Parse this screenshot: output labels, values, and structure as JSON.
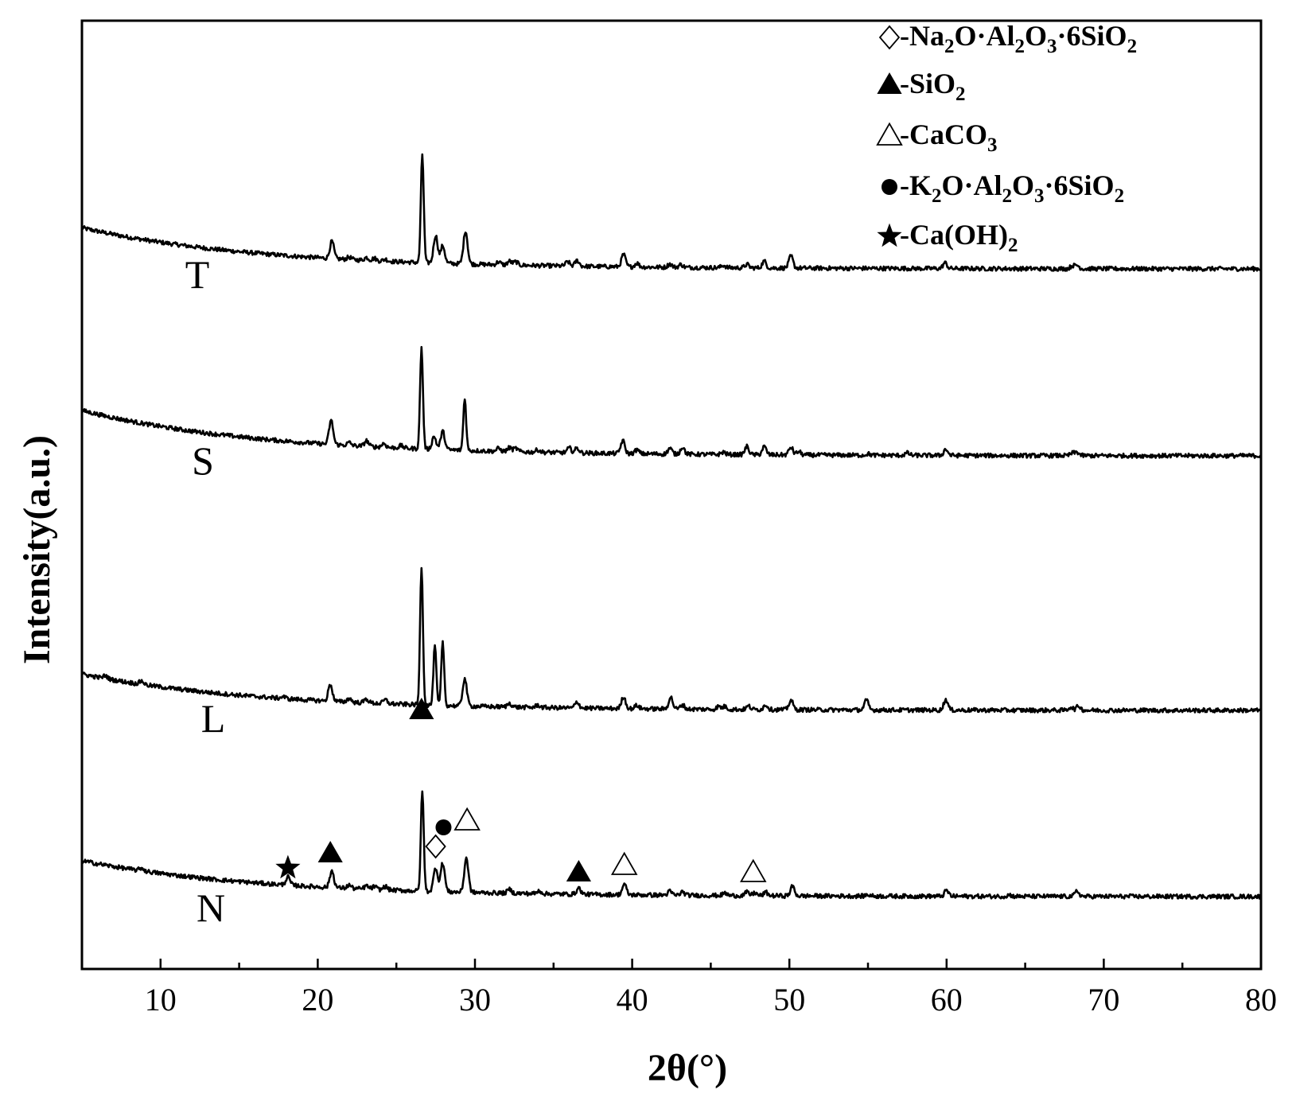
{
  "chart_data": {
    "type": "line",
    "xlabel": "2θ(°)",
    "ylabel": "Intensity(a.u.)",
    "xlim": [
      5,
      80
    ],
    "x_ticks": [
      10,
      20,
      30,
      40,
      50,
      60,
      70,
      80
    ],
    "y_ticks": [],
    "grid": false,
    "legend_position": "top-right",
    "legend": [
      {
        "symbol": "open-diamond",
        "text": [
          "-Na",
          "2",
          "O·Al",
          "2",
          "O",
          "3",
          "·6SiO",
          "2"
        ]
      },
      {
        "symbol": "filled-triangle",
        "text": [
          "-SiO",
          "2"
        ]
      },
      {
        "symbol": "open-triangle",
        "text": [
          "-CaCO",
          "3"
        ]
      },
      {
        "symbol": "filled-circle",
        "text": [
          "-K",
          "2",
          "O·Al",
          "2",
          "O",
          "3",
          "·6SiO",
          "2"
        ]
      },
      {
        "symbol": "filled-star",
        "text": [
          "-Ca(OH)",
          "2"
        ]
      }
    ],
    "series": [
      {
        "name": "T",
        "baseline_start": 0.86,
        "baseline_end": 0.0,
        "peaks": [
          [
            20.9,
            0.36
          ],
          [
            22.0,
            0.05
          ],
          [
            23.1,
            0.06
          ],
          [
            23.6,
            0.05
          ],
          [
            24.3,
            0.04
          ],
          [
            26.65,
            2.27
          ],
          [
            27.5,
            0.58
          ],
          [
            27.95,
            0.37
          ],
          [
            29.4,
            0.7
          ],
          [
            31.5,
            0.06
          ],
          [
            32.2,
            0.08
          ],
          [
            32.6,
            0.07
          ],
          [
            35.9,
            0.09
          ],
          [
            36.5,
            0.12
          ],
          [
            39.45,
            0.26
          ],
          [
            40.3,
            0.08
          ],
          [
            42.4,
            0.07
          ],
          [
            43.1,
            0.06
          ],
          [
            45.8,
            0.05
          ],
          [
            47.3,
            0.07
          ],
          [
            48.4,
            0.14
          ],
          [
            50.1,
            0.25
          ],
          [
            59.9,
            0.12
          ],
          [
            68.0,
            0.06
          ],
          [
            68.3,
            0.07
          ]
        ]
      },
      {
        "name": "S",
        "baseline_start": 0.95,
        "baseline_end": 0.0,
        "peaks": [
          [
            20.85,
            0.5
          ],
          [
            22.0,
            0.06
          ],
          [
            23.1,
            0.12
          ],
          [
            24.2,
            0.08
          ],
          [
            25.3,
            0.05
          ],
          [
            26.6,
            2.11
          ],
          [
            27.4,
            0.27
          ],
          [
            27.95,
            0.38
          ],
          [
            29.35,
            1.1
          ],
          [
            31.5,
            0.06
          ],
          [
            32.2,
            0.08
          ],
          [
            32.6,
            0.07
          ],
          [
            34.0,
            0.05
          ],
          [
            36.0,
            0.1
          ],
          [
            36.5,
            0.1
          ],
          [
            39.4,
            0.27
          ],
          [
            40.3,
            0.08
          ],
          [
            42.4,
            0.12
          ],
          [
            43.2,
            0.15
          ],
          [
            45.8,
            0.05
          ],
          [
            47.3,
            0.17
          ],
          [
            48.4,
            0.17
          ],
          [
            50.1,
            0.16
          ],
          [
            50.6,
            0.07
          ],
          [
            55.0,
            0.03
          ],
          [
            57.5,
            0.05
          ],
          [
            59.95,
            0.13
          ],
          [
            68.0,
            0.05
          ],
          [
            68.3,
            0.07
          ]
        ]
      },
      {
        "name": "L",
        "baseline_start": 0.76,
        "baseline_end": 0.0,
        "peaks": [
          [
            6.5,
            0.06
          ],
          [
            8.8,
            0.07
          ],
          [
            17.8,
            0.04
          ],
          [
            20.8,
            0.35
          ],
          [
            22.0,
            0.08
          ],
          [
            23.1,
            0.08
          ],
          [
            24.3,
            0.08
          ],
          [
            26.6,
            2.9
          ],
          [
            27.45,
            1.25
          ],
          [
            27.95,
            1.32
          ],
          [
            29.35,
            0.58
          ],
          [
            32.2,
            0.08
          ],
          [
            34.0,
            0.05
          ],
          [
            36.5,
            0.13
          ],
          [
            39.45,
            0.25
          ],
          [
            40.3,
            0.07
          ],
          [
            42.45,
            0.25
          ],
          [
            43.2,
            0.09
          ],
          [
            45.5,
            0.06
          ],
          [
            45.9,
            0.06
          ],
          [
            47.4,
            0.07
          ],
          [
            48.5,
            0.1
          ],
          [
            50.1,
            0.2
          ],
          [
            54.9,
            0.2
          ],
          [
            59.95,
            0.22
          ],
          [
            67.9,
            0.07
          ],
          [
            68.4,
            0.09
          ]
        ]
      },
      {
        "name": "N",
        "baseline_start": 0.75,
        "baseline_end": 0.0,
        "peaks": [
          [
            8.8,
            0.06
          ],
          [
            18.1,
            0.17
          ],
          [
            20.9,
            0.35
          ],
          [
            22.0,
            0.07
          ],
          [
            23.1,
            0.07
          ],
          [
            23.6,
            0.06
          ],
          [
            24.3,
            0.07
          ],
          [
            26.65,
            2.1
          ],
          [
            27.5,
            0.5
          ],
          [
            27.95,
            0.6
          ],
          [
            29.45,
            0.72
          ],
          [
            32.2,
            0.08
          ],
          [
            34.1,
            0.06
          ],
          [
            36.6,
            0.13
          ],
          [
            39.5,
            0.22
          ],
          [
            42.4,
            0.08
          ],
          [
            43.2,
            0.07
          ],
          [
            45.9,
            0.05
          ],
          [
            47.3,
            0.07
          ],
          [
            47.8,
            0.06
          ],
          [
            48.5,
            0.07
          ],
          [
            50.2,
            0.2
          ],
          [
            55.0,
            0.03
          ],
          [
            60.0,
            0.12
          ],
          [
            64.0,
            0.03
          ],
          [
            68.3,
            0.11
          ]
        ]
      }
    ],
    "peak_markers": [
      {
        "symbol": "filled-star",
        "x": 18.1
      },
      {
        "symbol": "filled-triangle",
        "x": 20.8
      },
      {
        "symbol": "filled-triangle",
        "x": 26.6
      },
      {
        "symbol": "open-diamond",
        "x": 27.5
      },
      {
        "symbol": "filled-circle",
        "x": 28.0
      },
      {
        "symbol": "open-triangle",
        "x": 29.5
      },
      {
        "symbol": "filled-triangle",
        "x": 36.6
      },
      {
        "symbol": "open-triangle",
        "x": 39.5
      },
      {
        "symbol": "open-triangle",
        "x": 47.7
      }
    ]
  }
}
